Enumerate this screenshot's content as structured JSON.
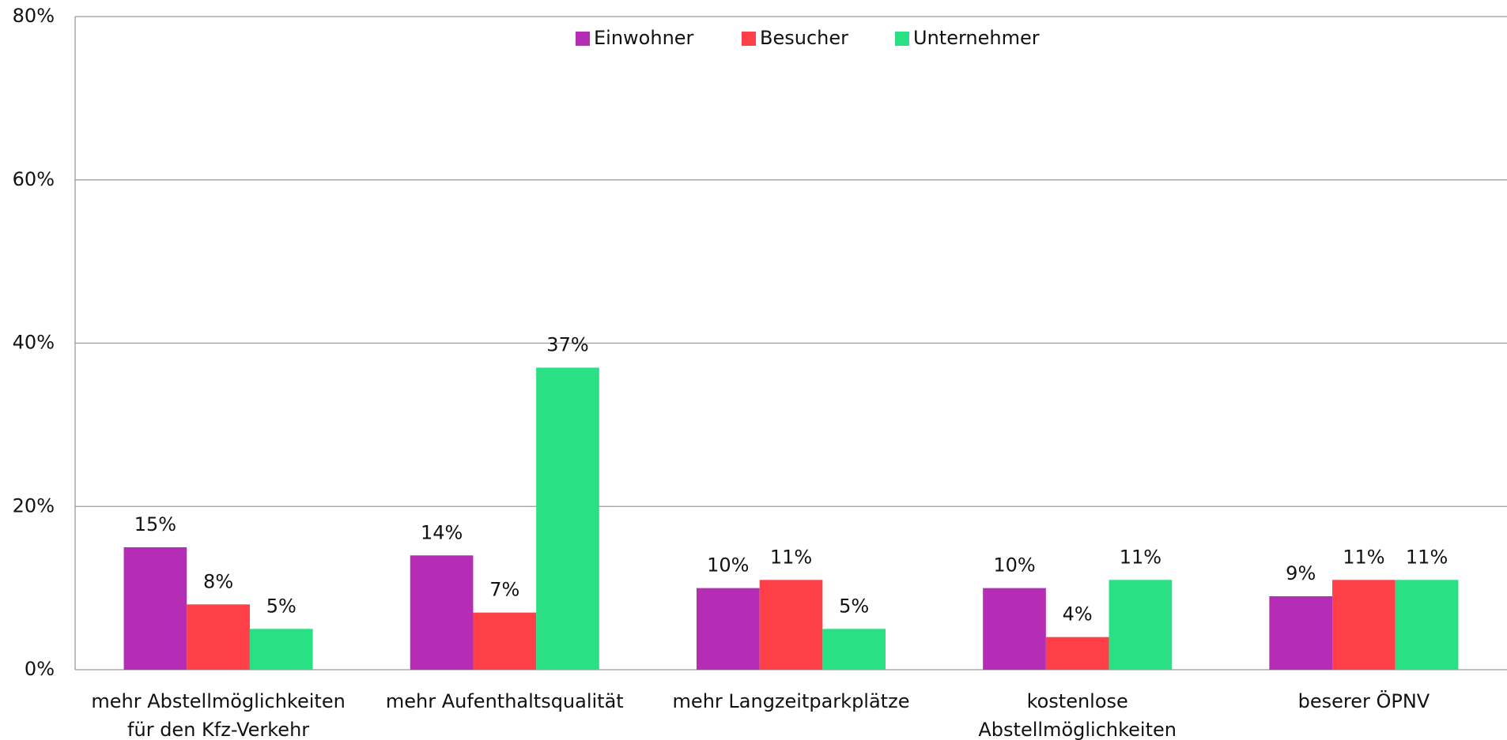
{
  "chart_data": {
    "type": "bar",
    "categories": [
      "mehr Abstellmöglichkeiten für den Kfz-Verkehr",
      "mehr Aufenthaltsqualität",
      "mehr Langzeitparkplätze",
      "kostenlose Abstellmöglichkeiten",
      "beserer ÖPNV"
    ],
    "series": [
      {
        "name": "Einwohner",
        "color": "#b52db5",
        "values": [
          15,
          14,
          10,
          10,
          9
        ],
        "value_labels": [
          "15%",
          "14%",
          "10%",
          "10%",
          "9%"
        ]
      },
      {
        "name": "Besucher",
        "color": "#ff4049",
        "values": [
          8,
          7,
          11,
          4,
          11
        ],
        "value_labels": [
          "8%",
          "7%",
          "11%",
          "4%",
          "11%"
        ]
      },
      {
        "name": "Unternehmer",
        "color": "#2ae084",
        "values": [
          5,
          37,
          5,
          11,
          11
        ],
        "value_labels": [
          "5%",
          "37%",
          "5%",
          "11%",
          "11%"
        ]
      }
    ],
    "ylim": [
      0,
      80
    ],
    "yticks": [
      {
        "value": 0,
        "label": "0%"
      },
      {
        "value": 20,
        "label": "20%"
      },
      {
        "value": 40,
        "label": "40%"
      },
      {
        "value": 60,
        "label": "60%"
      },
      {
        "value": 80,
        "label": "80%"
      }
    ],
    "grid": true,
    "legend": "top"
  }
}
